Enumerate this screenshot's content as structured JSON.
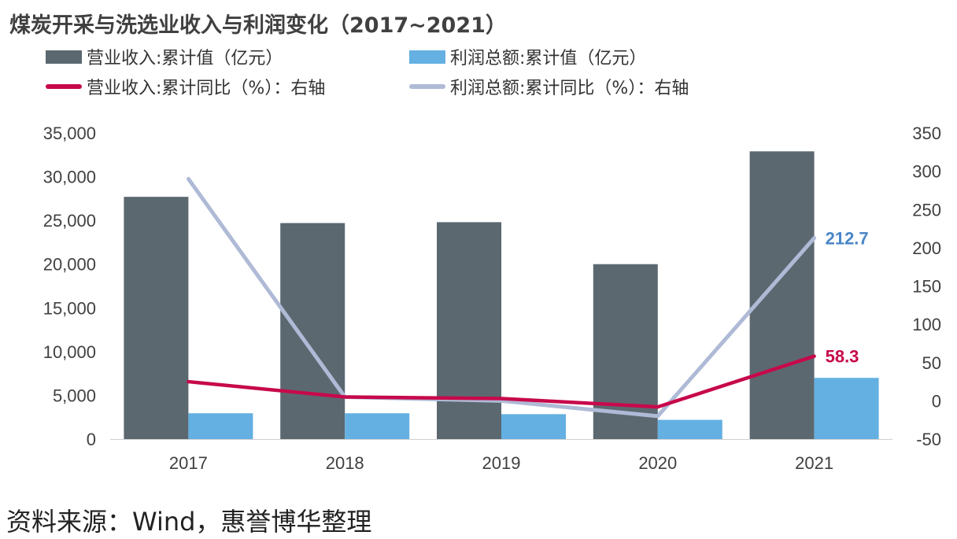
{
  "title": "煤炭开采与洗选业收入与利润变化（2017~2021）",
  "source": "资料来源：Wind，惠誉博华整理",
  "colors": {
    "revenue_bar": "#5c6870",
    "profit_bar": "#64b0e2",
    "revenue_line": "#c7094b",
    "profit_line": "#afbad6",
    "profit_label": "#4a86c8",
    "revenue_label": "#c7094b"
  },
  "chart_data": {
    "type": "bar",
    "categories": [
      "2017",
      "2018",
      "2019",
      "2020",
      "2021"
    ],
    "series": [
      {
        "name": "营业收入:累计值（亿元）",
        "kind": "bar",
        "axis": "left",
        "values": [
          27700,
          24700,
          24800,
          20000,
          32900
        ]
      },
      {
        "name": "利润总额:累计值（亿元）",
        "kind": "bar",
        "axis": "left",
        "values": [
          2950,
          2950,
          2850,
          2200,
          7000
        ]
      },
      {
        "name": "营业收入:累计同比（%）：右轴",
        "kind": "line",
        "axis": "right",
        "values": [
          25,
          5,
          3,
          -8,
          58.3
        ]
      },
      {
        "name": "利润总额:累计同比（%）：右轴",
        "kind": "line",
        "axis": "right",
        "values": [
          290,
          5,
          0,
          -20,
          212.7
        ]
      }
    ],
    "y_left": {
      "min": 0,
      "max": 35000,
      "ticks": [
        "0",
        "5,000",
        "10,000",
        "15,000",
        "20,000",
        "25,000",
        "30,000",
        "35,000"
      ]
    },
    "y_right": {
      "min": -50,
      "max": 350,
      "ticks": [
        "-50",
        "0",
        "50",
        "100",
        "150",
        "200",
        "250",
        "300",
        "350"
      ]
    },
    "annotations": [
      {
        "series": 3,
        "index": 4,
        "text": "212.7"
      },
      {
        "series": 2,
        "index": 4,
        "text": "58.3"
      }
    ],
    "legend_position": "top",
    "grid": false
  }
}
